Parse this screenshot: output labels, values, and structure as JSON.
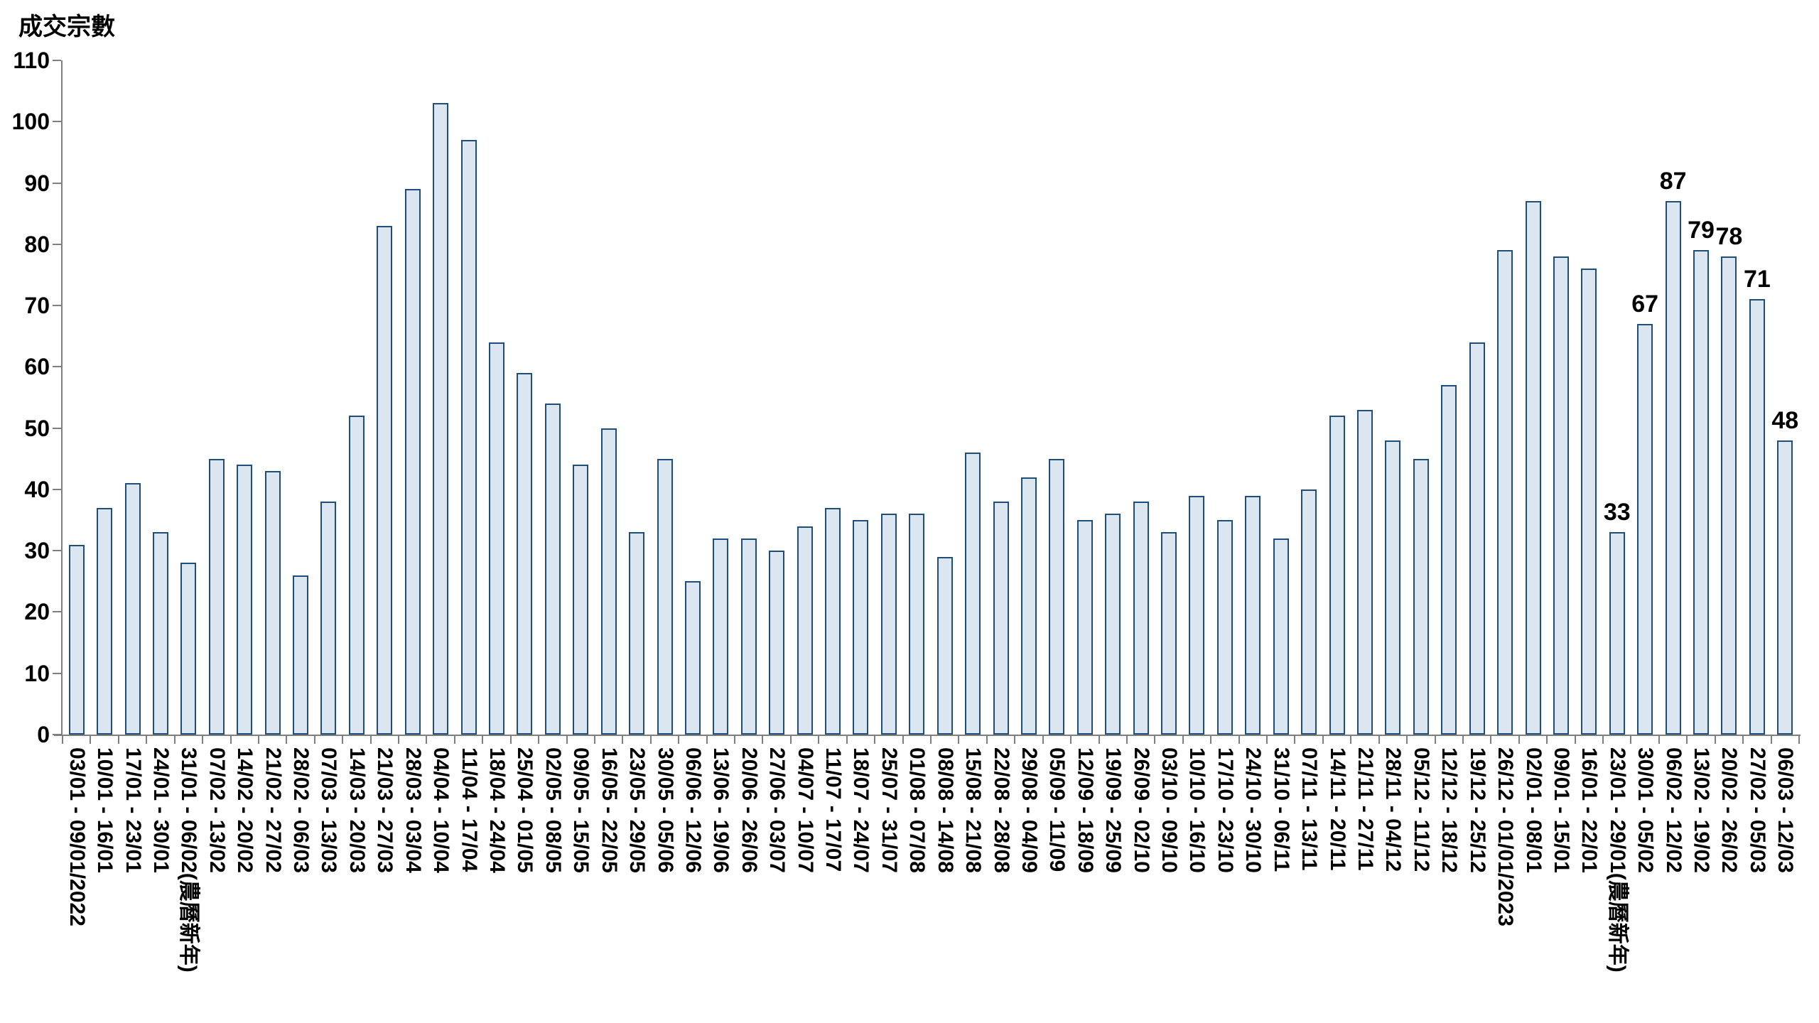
{
  "chart_data": {
    "type": "bar",
    "title": "成交宗數",
    "ylabel": "",
    "xlabel": "",
    "ylim": [
      0,
      110
    ],
    "y_tick_step": 10,
    "y_tick_labels": [
      "0",
      "10",
      "20",
      "30",
      "40",
      "50",
      "60",
      "70",
      "80",
      "90",
      "100",
      "110"
    ],
    "grid": false,
    "legend": "none",
    "categories": [
      "03/01 - 09/01/2022",
      "10/01 - 16/01",
      "17/01 - 23/01",
      "24/01 - 30/01",
      "31/01 - 06/02(農曆新年)",
      "07/02 - 13/02",
      "14/02 - 20/02",
      "21/02 - 27/02",
      "28/02 - 06/03",
      "07/03 - 13/03",
      "14/03 - 20/03",
      "21/03 - 27/03",
      "28/03 - 03/04",
      "04/04 - 10/04",
      "11/04 - 17/04",
      "18/04 - 24/04",
      "25/04 - 01/05",
      "02/05 - 08/05",
      "09/05 - 15/05",
      "16/05 - 22/05",
      "23/05 - 29/05",
      "30/05 - 05/06",
      "06/06 - 12/06",
      "13/06 - 19/06",
      "20/06 - 26/06",
      "27/06 - 03/07",
      "04/07 - 10/07",
      "11/07 - 17/07",
      "18/07 - 24/07",
      "25/07 - 31/07",
      "01/08 - 07/08",
      "08/08 - 14/08",
      "15/08 - 21/08",
      "22/08 - 28/08",
      "29/08 - 04/09",
      "05/09 - 11/09",
      "12/09 - 18/09",
      "19/09 - 25/09",
      "26/09 - 02/10",
      "03/10 - 09/10",
      "10/10 - 16/10",
      "17/10 - 23/10",
      "24/10 - 30/10",
      "31/10 - 06/11",
      "07/11 - 13/11",
      "14/11 - 20/11",
      "21/11 - 27/11",
      "28/11 - 04/12",
      "05/12 - 11/12",
      "12/12 - 18/12",
      "19/12 - 25/12",
      "26/12 - 01/01/2023",
      "02/01 - 08/01",
      "09/01 - 15/01",
      "16/01 - 22/01",
      "23/01 - 29/01(農曆新年)",
      "30/01 - 05/02",
      "06/02 - 12/02",
      "13/02 - 19/02",
      "20/02 - 26/02",
      "27/02 - 05/03",
      "06/03 - 12/03"
    ],
    "values": [
      31,
      37,
      41,
      33,
      28,
      45,
      44,
      43,
      26,
      38,
      52,
      83,
      89,
      103,
      97,
      64,
      59,
      54,
      44,
      50,
      33,
      45,
      25,
      32,
      32,
      30,
      34,
      37,
      35,
      36,
      36,
      29,
      46,
      38,
      42,
      45,
      35,
      36,
      38,
      33,
      39,
      35,
      39,
      32,
      40,
      52,
      53,
      48,
      45,
      57,
      64,
      79,
      87,
      78,
      76,
      33,
      67,
      87,
      79,
      78,
      71,
      48
    ],
    "data_labels_shown_for_last_n_bars": 7,
    "data_label_values_shown": [
      "33",
      "67",
      "87",
      "79",
      "78",
      "71",
      "48"
    ],
    "colors": {
      "bar_fill": "#DCE6F1",
      "bar_border": "#1F4E79",
      "axis": "#7F7F7F",
      "text": "#000000",
      "background": "#FFFFFF"
    }
  }
}
